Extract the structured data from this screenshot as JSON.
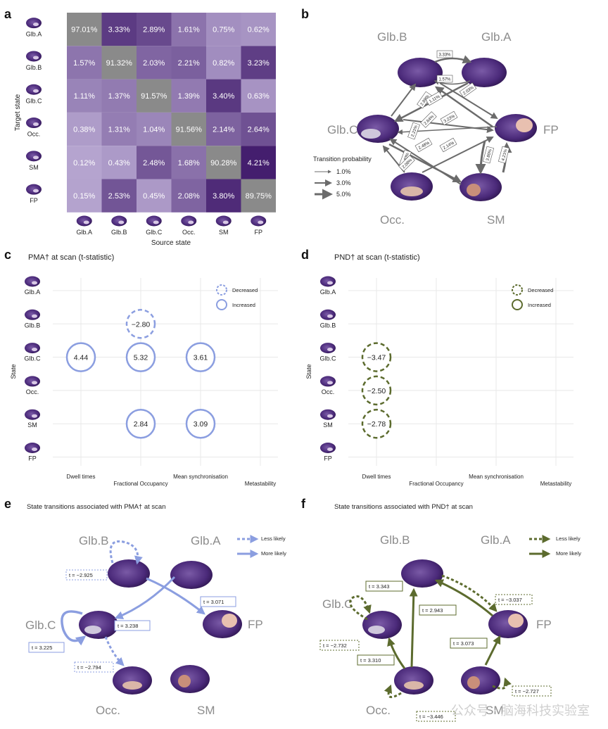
{
  "panels": {
    "a": "a",
    "b": "b",
    "c": "c",
    "d": "d",
    "e": "e",
    "f": "f"
  },
  "heatmap": {
    "ylabel": "Target state",
    "xlabel": "Source state",
    "rows": [
      "Glb.A",
      "Glb.B",
      "Glb.C",
      "Occ.",
      "SM",
      "FP"
    ],
    "cols": [
      "Glb.A",
      "Glb.B",
      "Glb.C",
      "Occ.",
      "SM",
      "FP"
    ],
    "values": [
      [
        "97.01%",
        "3.33%",
        "2.89%",
        "1.61%",
        "0.75%",
        "0.62%"
      ],
      [
        "1.57%",
        "91.32%",
        "2.03%",
        "2.21%",
        "0.82%",
        "3.23%"
      ],
      [
        "1.11%",
        "1.37%",
        "91.57%",
        "1.39%",
        "3.40%",
        "0.63%"
      ],
      [
        "0.38%",
        "1.31%",
        "1.04%",
        "91.56%",
        "2.14%",
        "2.64%"
      ],
      [
        "0.12%",
        "0.43%",
        "2.48%",
        "1.68%",
        "90.28%",
        "4.21%"
      ],
      [
        "0.15%",
        "2.53%",
        "0.45%",
        "2.08%",
        "3.80%",
        "89.75%"
      ]
    ]
  },
  "chart_data": [
    {
      "type": "heatmap",
      "title": "",
      "xlabel": "Source state",
      "ylabel": "Target state",
      "x": [
        "Glb.A",
        "Glb.B",
        "Glb.C",
        "Occ.",
        "SM",
        "FP"
      ],
      "y": [
        "Glb.A",
        "Glb.B",
        "Glb.C",
        "Occ.",
        "SM",
        "FP"
      ],
      "values": [
        [
          97.01,
          3.33,
          2.89,
          1.61,
          0.75,
          0.62
        ],
        [
          1.57,
          91.32,
          2.03,
          2.21,
          0.82,
          3.23
        ],
        [
          1.11,
          1.37,
          91.57,
          1.39,
          3.4,
          0.63
        ],
        [
          0.38,
          1.31,
          1.04,
          91.56,
          2.14,
          2.64
        ],
        [
          0.12,
          0.43,
          2.48,
          1.68,
          90.28,
          4.21
        ],
        [
          0.15,
          2.53,
          0.45,
          2.08,
          3.8,
          89.75
        ]
      ]
    },
    {
      "type": "scatter",
      "title": "PMA† at scan (t-statistic)",
      "ylabel": "State",
      "categories": [
        "Dwell times",
        "Fractional Occupancy",
        "Mean synchronisation",
        "Metastability"
      ],
      "states": [
        "Glb.A",
        "Glb.B",
        "Glb.C",
        "Occ.",
        "SM",
        "FP"
      ],
      "points": [
        {
          "state": "Glb.B",
          "metric": "Fractional Occupancy",
          "t": -2.8,
          "direction": "Decreased"
        },
        {
          "state": "Glb.C",
          "metric": "Dwell times",
          "t": 4.44,
          "direction": "Increased"
        },
        {
          "state": "Glb.C",
          "metric": "Fractional Occupancy",
          "t": 5.32,
          "direction": "Increased"
        },
        {
          "state": "Glb.C",
          "metric": "Mean synchronisation",
          "t": 3.61,
          "direction": "Increased"
        },
        {
          "state": "SM",
          "metric": "Fractional Occupancy",
          "t": 2.84,
          "direction": "Increased"
        },
        {
          "state": "SM",
          "metric": "Mean synchronisation",
          "t": 3.09,
          "direction": "Increased"
        }
      ]
    },
    {
      "type": "scatter",
      "title": "PND† at scan (t-statistic)",
      "ylabel": "State",
      "categories": [
        "Dwell times",
        "Fractional Occupancy",
        "Mean synchronisation",
        "Metastability"
      ],
      "states": [
        "Glb.A",
        "Glb.B",
        "Glb.C",
        "Occ.",
        "SM",
        "FP"
      ],
      "points": [
        {
          "state": "Glb.C",
          "metric": "Dwell times",
          "t": -3.47,
          "direction": "Decreased"
        },
        {
          "state": "Occ.",
          "metric": "Dwell times",
          "t": -2.5,
          "direction": "Decreased"
        },
        {
          "state": "SM",
          "metric": "Dwell times",
          "t": -2.78,
          "direction": "Decreased"
        }
      ]
    }
  ],
  "panel_b": {
    "nodes": {
      "glbb": "Glb.B",
      "glba": "Glb.A",
      "glbc": "Glb.C",
      "fp": "FP",
      "occ": "Occ.",
      "sm": "SM"
    },
    "legend_title": "Transition probability",
    "legend_items": [
      "1.0%",
      "3.0%",
      "5.0%"
    ],
    "edge_labels": [
      "3.33%",
      "1.57%",
      "2.03%",
      "2.89%",
      "1.11%",
      "3.23%",
      "2.21%",
      "2.64%",
      "3.80%",
      "4.21%",
      "2.48%",
      "2.14%",
      "3.40%",
      "2.08%"
    ]
  },
  "panel_c": {
    "title": "PMA† at scan (t-statistic)",
    "ylabel": "State",
    "states": [
      "Glb.A",
      "Glb.B",
      "Glb.C",
      "Occ.",
      "SM",
      "FP"
    ],
    "metrics": [
      "Dwell times",
      "Fractional Occupancy",
      "Mean synchronisation",
      "Metastability"
    ],
    "legend": {
      "decreased": "Decreased",
      "increased": "Increased"
    },
    "values": {
      "v1": "−2.80",
      "v2": "4.44",
      "v3": "5.32",
      "v4": "3.61",
      "v5": "2.84",
      "v6": "3.09"
    }
  },
  "panel_d": {
    "title": "PND† at scan (t-statistic)",
    "ylabel": "State",
    "states": [
      "Glb.A",
      "Glb.B",
      "Glb.C",
      "Occ.",
      "SM",
      "FP"
    ],
    "metrics": [
      "Dwell times",
      "Fractional Occupancy",
      "Mean synchronisation",
      "Metastability"
    ],
    "legend": {
      "decreased": "Decreased",
      "increased": "Increased"
    },
    "values": {
      "v1": "−3.47",
      "v2": "−2.50",
      "v3": "−2.78"
    }
  },
  "panel_e": {
    "title": "State transitions associated with PMA† at scan",
    "nodes": {
      "glbb": "Glb.B",
      "glba": "Glb.A",
      "glbc": "Glb.C",
      "fp": "FP",
      "occ": "Occ.",
      "sm": "SM"
    },
    "legend": {
      "less": "Less likely",
      "more": "More likely"
    },
    "labels": {
      "l1": "t = −2.925",
      "l2": "t =  3.071",
      "l3": "t =  3.238",
      "l4": "t =  3.225",
      "l5": "t = −2.794"
    }
  },
  "panel_f": {
    "title": "State transitions associated with PND† at scan",
    "nodes": {
      "glbb": "Glb.B",
      "glba": "Glb.A",
      "glbc": "Glb.C",
      "fp": "FP",
      "occ": "Occ.",
      "sm": "SM"
    },
    "legend": {
      "less": "Less likely",
      "more": "More likely"
    },
    "labels": {
      "l1": "t =  3.343",
      "l2": "t = −3.037",
      "l3": "t =  2.943",
      "l4": "t = −2.732",
      "l5": "t =  3.073",
      "l6": "t =  3.310",
      "l7": "t = −2.727",
      "l8": "t = −3.446"
    }
  },
  "watermark": "公众号 · 脑海科技实验室",
  "colors": {
    "purple": "#8b9ee0",
    "green": "#5c6b2e",
    "grey": "#6b6b6b"
  }
}
